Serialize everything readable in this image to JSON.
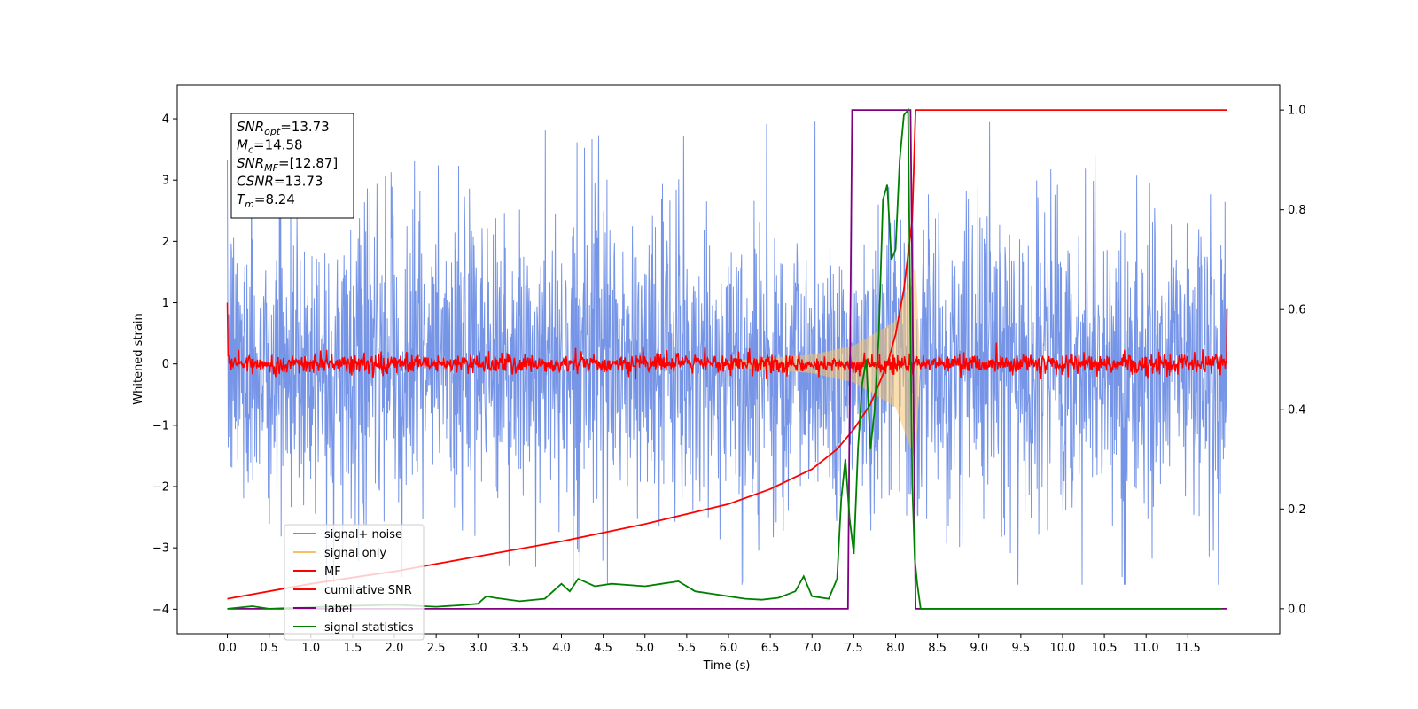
{
  "chart_data": {
    "type": "line",
    "xlabel": "Time (s)",
    "ylabel": "Whitened strain",
    "xlim": [
      -0.6,
      12.6
    ],
    "ylim": [
      -4.4,
      4.55
    ],
    "y2lim": [
      -0.05,
      1.05
    ],
    "xticks": [
      "0.0",
      "0.5",
      "1.0",
      "1.5",
      "2.0",
      "2.5",
      "3.0",
      "3.5",
      "4.0",
      "4.5",
      "5.0",
      "5.5",
      "6.0",
      "6.5",
      "7.0",
      "7.5",
      "8.0",
      "8.5",
      "9.0",
      "9.5",
      "10.0",
      "10.5",
      "11.0",
      "11.5"
    ],
    "yticks": [
      "4",
      "3",
      "2",
      "1",
      "0",
      "−1",
      "−2",
      "−3",
      "−4"
    ],
    "y2ticks": [
      "1.0",
      "0.8",
      "0.6",
      "0.4",
      "0.2",
      "0.0"
    ],
    "grid": false,
    "legend_position": "lower-left",
    "annotation": {
      "lines": [
        {
          "var": "SNR",
          "sub": "opt",
          "value": "=13.73"
        },
        {
          "var": "M",
          "sub": "c",
          "value": "=14.58"
        },
        {
          "var": "SNR",
          "sub": "MF",
          "value": "=[12.87]"
        },
        {
          "var": "CSNR",
          "sub": "",
          "value": "=13.73"
        },
        {
          "var": "T",
          "sub": "m",
          "value": "=8.24"
        }
      ]
    },
    "series": [
      {
        "name": "signal+ noise",
        "axis": "left",
        "color": "#6f8fe6",
        "kind": "noise",
        "envelope": 1.2,
        "peak_range": [
          -3.6,
          4.2
        ]
      },
      {
        "name": "signal only",
        "axis": "left",
        "color": "#f5c26b",
        "kind": "chirp",
        "x": [
          6.0,
          7.0,
          7.5,
          8.0,
          8.24,
          8.3
        ],
        "amplitude": [
          0.05,
          0.15,
          0.3,
          0.7,
          1.6,
          0.0
        ]
      },
      {
        "name": "MF",
        "axis": "left",
        "color": "#ff0000",
        "kind": "noise",
        "envelope": 0.08,
        "start_value": 1.0,
        "end_value": 0.9
      },
      {
        "name": "cumilative SNR",
        "axis": "right",
        "color": "#ff0000",
        "x": [
          0.0,
          1.0,
          2.0,
          3.0,
          4.0,
          5.0,
          6.0,
          6.5,
          7.0,
          7.3,
          7.5,
          7.7,
          7.9,
          8.0,
          8.1,
          8.2,
          8.24,
          9.0,
          10.0,
          11.0,
          11.97
        ],
        "y": [
          0.02,
          0.05,
          0.075,
          0.105,
          0.135,
          0.17,
          0.21,
          0.24,
          0.28,
          0.32,
          0.36,
          0.41,
          0.49,
          0.55,
          0.64,
          0.78,
          1.0,
          1.0,
          1.0,
          1.0,
          1.0
        ]
      },
      {
        "name": "label",
        "axis": "right",
        "color": "#800080",
        "x": [
          0.0,
          7.43,
          7.48,
          8.18,
          8.24,
          11.97
        ],
        "y": [
          0.0,
          0.0,
          1.0,
          1.0,
          0.0,
          0.0
        ]
      },
      {
        "name": "signal statistics",
        "axis": "right",
        "color": "#008000",
        "x": [
          0.0,
          0.3,
          0.5,
          1.0,
          1.5,
          2.0,
          2.5,
          2.8,
          3.0,
          3.1,
          3.2,
          3.5,
          3.8,
          4.0,
          4.1,
          4.2,
          4.4,
          4.6,
          5.0,
          5.2,
          5.4,
          5.6,
          5.8,
          6.0,
          6.2,
          6.4,
          6.6,
          6.8,
          6.9,
          7.0,
          7.2,
          7.3,
          7.35,
          7.4,
          7.45,
          7.5,
          7.55,
          7.6,
          7.65,
          7.7,
          7.75,
          7.8,
          7.85,
          7.9,
          7.95,
          8.0,
          8.05,
          8.1,
          8.15,
          8.2,
          8.23,
          8.26,
          8.3,
          9.0,
          10.0,
          11.0,
          11.9
        ],
        "y": [
          0.0,
          0.005,
          0.0,
          0.003,
          0.006,
          0.008,
          0.004,
          0.007,
          0.01,
          0.025,
          0.022,
          0.015,
          0.02,
          0.05,
          0.035,
          0.06,
          0.045,
          0.05,
          0.045,
          0.05,
          0.055,
          0.035,
          0.03,
          0.025,
          0.02,
          0.018,
          0.022,
          0.035,
          0.065,
          0.025,
          0.02,
          0.06,
          0.22,
          0.3,
          0.18,
          0.11,
          0.32,
          0.45,
          0.5,
          0.32,
          0.4,
          0.55,
          0.82,
          0.85,
          0.7,
          0.72,
          0.9,
          0.99,
          1.0,
          0.25,
          0.1,
          0.05,
          0.0,
          0.0,
          0.0,
          0.0,
          0.0
        ]
      }
    ]
  }
}
